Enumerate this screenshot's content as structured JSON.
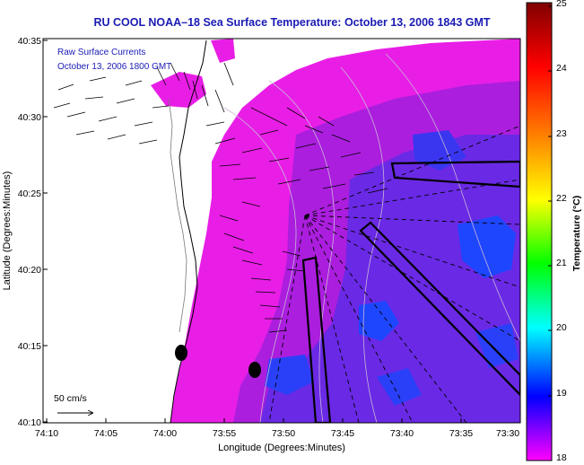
{
  "title": "RU COOL  NOAA–18  Sea Surface Temperature:  October 13, 2006 1843 GMT",
  "annotation": {
    "line1": "Raw Surface Currents",
    "line2": "October 13, 2006 1800 GMT"
  },
  "scale_label": "50 cm/s",
  "axes": {
    "xlabel": "Longitude (Degrees:Minutes)",
    "ylabel": "Latitude (Degrees:Minutes)",
    "x_ticks": [
      "74:10",
      "74:05",
      "74:00",
      "73:55",
      "73:50",
      "73:45",
      "73:40",
      "73:35",
      "73:30"
    ],
    "y_ticks": [
      "40:35",
      "40:30",
      "40:25",
      "40:20",
      "40:15",
      "40:10"
    ]
  },
  "colorbar": {
    "label": "Temperature (°C)",
    "ticks": [
      "25",
      "24",
      "23",
      "22",
      "21",
      "20",
      "19",
      "18"
    ],
    "range": [
      18,
      25
    ],
    "colors": [
      "#ff00ff",
      "#0000ff",
      "#00ffff",
      "#00ff00",
      "#ffff00",
      "#ff8000",
      "#ff0000",
      "#800000"
    ]
  },
  "colors": {
    "sst_warm": "#e81ee6",
    "sst_mid": "#a01edc",
    "sst_cool": "#5a2ce6",
    "sst_cold": "#1e46ff",
    "title_text": "#1a1ab4"
  }
}
